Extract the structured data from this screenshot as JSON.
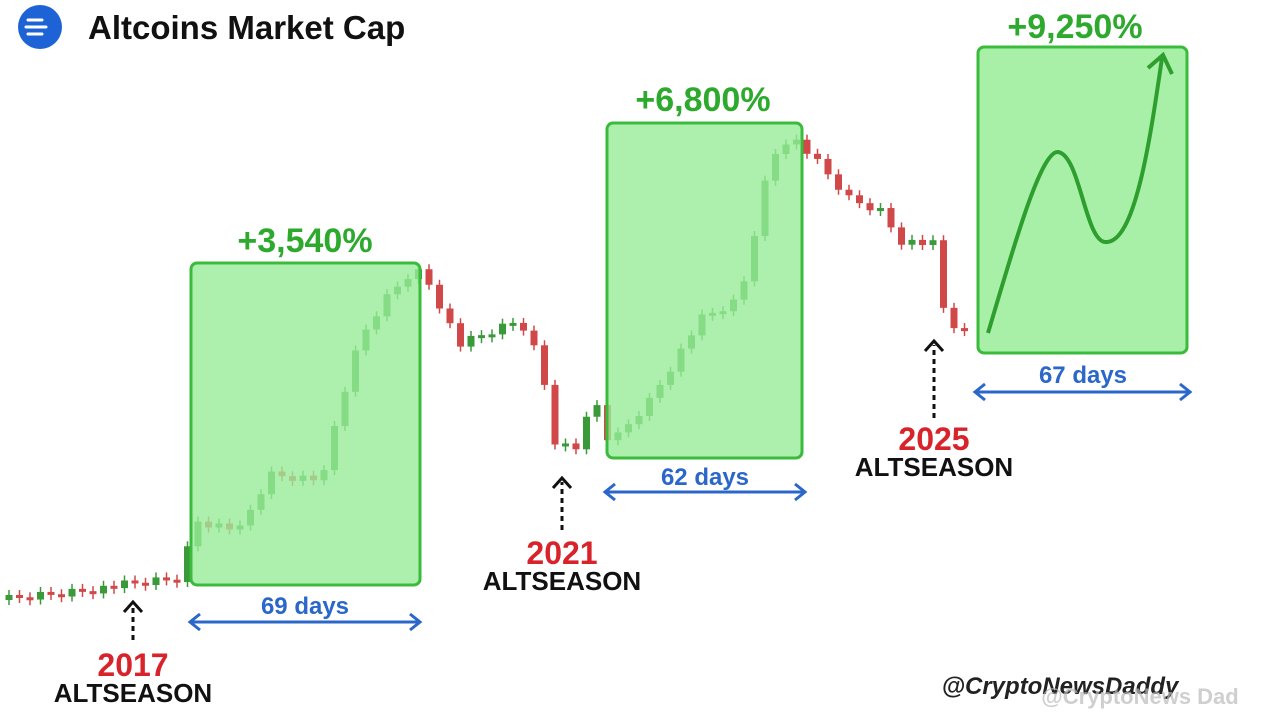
{
  "header": {
    "title": "Altcoins Market Cap"
  },
  "seasons": [
    {
      "year": "2017",
      "label": "ALTSEASON",
      "gain": "+3,540%",
      "duration": "69 days"
    },
    {
      "year": "2021",
      "label": "ALTSEASON",
      "gain": "+6,800%",
      "duration": "62 days"
    },
    {
      "year": "2025",
      "label": "ALTSEASON",
      "gain": "+9,250%",
      "duration": "67 days"
    }
  ],
  "footer": {
    "handle": "@CryptoNewsDaddy",
    "watermark": "@CryptoNews Dad"
  }
}
